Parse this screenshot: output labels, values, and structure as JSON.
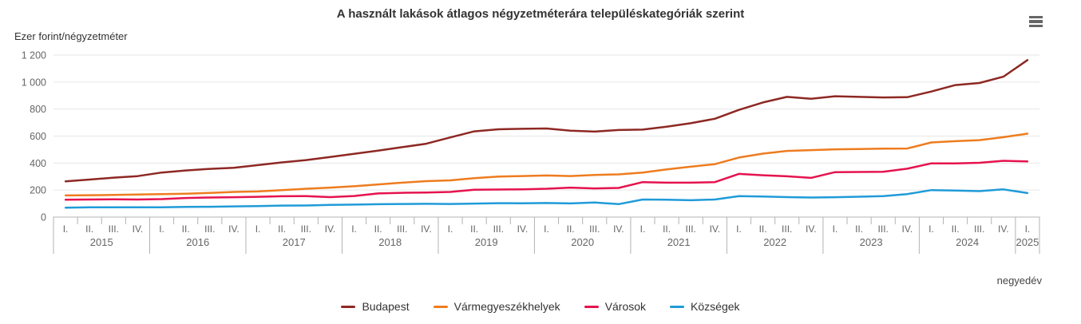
{
  "title": "A használt lakások átlagos négyzetméterára településkategóriák szerint",
  "y_axis_title": "Ezer forint/négyzetméter",
  "x_axis_title": "negyedév",
  "export_menu_icon": "hamburger-menu-icon",
  "colors": {
    "grid": "#e6e6e6",
    "axis": "#b3b3b3",
    "tick_label": "#666666",
    "title_text": "#333333"
  },
  "chart_data": {
    "type": "line",
    "title": "A használt lakások átlagos négyzetméterára településkategóriák szerint",
    "ylabel": "Ezer forint/négyzetméter",
    "xlabel": "negyedév",
    "ylim": [
      0,
      1200
    ],
    "grid": true,
    "legend_position": "bottom",
    "y_ticks": [
      0,
      200,
      400,
      600,
      800,
      1000,
      1200
    ],
    "y_tick_labels": [
      "0",
      "200",
      "400",
      "600",
      "800",
      "1 000",
      "1 200"
    ],
    "x_groups": [
      {
        "year": "2015",
        "quarters": [
          "I.",
          "II.",
          "III.",
          "IV."
        ]
      },
      {
        "year": "2016",
        "quarters": [
          "I.",
          "II.",
          "III.",
          "IV."
        ]
      },
      {
        "year": "2017",
        "quarters": [
          "I.",
          "II.",
          "III.",
          "IV."
        ]
      },
      {
        "year": "2018",
        "quarters": [
          "I.",
          "II.",
          "III.",
          "IV."
        ]
      },
      {
        "year": "2019",
        "quarters": [
          "I.",
          "II.",
          "III.",
          "IV."
        ]
      },
      {
        "year": "2020",
        "quarters": [
          "I.",
          "II.",
          "III.",
          "IV."
        ]
      },
      {
        "year": "2021",
        "quarters": [
          "I.",
          "II.",
          "III.",
          "IV."
        ]
      },
      {
        "year": "2022",
        "quarters": [
          "I.",
          "II.",
          "III.",
          "IV."
        ]
      },
      {
        "year": "2023",
        "quarters": [
          "I.",
          "II.",
          "III.",
          "IV."
        ]
      },
      {
        "year": "2024",
        "quarters": [
          "I.",
          "II.",
          "III.",
          "IV."
        ]
      },
      {
        "year": "2025",
        "quarters": [
          "I."
        ]
      }
    ],
    "series": [
      {
        "name": "Budapest",
        "color": "#8e2823",
        "values": [
          265,
          278,
          292,
          303,
          330,
          345,
          357,
          365,
          385,
          405,
          422,
          445,
          468,
          492,
          518,
          543,
          590,
          635,
          650,
          654,
          656,
          640,
          633,
          645,
          648,
          670,
          695,
          728,
          794,
          849,
          890,
          876,
          895,
          890,
          886,
          888,
          930,
          978,
          993,
          1040,
          1163
        ]
      },
      {
        "name": "Vármegyeszékhelyek",
        "color": "#ee7c1f",
        "values": [
          160,
          162,
          164,
          167,
          170,
          173,
          179,
          186,
          190,
          200,
          210,
          218,
          228,
          242,
          255,
          266,
          272,
          288,
          300,
          304,
          308,
          304,
          312,
          316,
          330,
          353,
          373,
          392,
          441,
          470,
          490,
          496,
          502,
          504,
          507,
          508,
          553,
          562,
          570,
          592,
          618
        ]
      },
      {
        "name": "Városok",
        "color": "#e5134e",
        "values": [
          128,
          130,
          131,
          130,
          133,
          141,
          145,
          147,
          150,
          154,
          155,
          148,
          156,
          175,
          180,
          182,
          186,
          202,
          204,
          206,
          210,
          218,
          212,
          216,
          259,
          255,
          255,
          259,
          320,
          310,
          302,
          290,
          333,
          334,
          335,
          358,
          398,
          398,
          402,
          417,
          412
        ]
      },
      {
        "name": "Községek",
        "color": "#209bd8",
        "values": [
          70,
          72,
          72,
          72,
          73,
          75,
          76,
          79,
          81,
          85,
          86,
          90,
          92,
          95,
          97,
          98,
          97,
          100,
          103,
          102,
          104,
          101,
          108,
          96,
          130,
          128,
          125,
          130,
          155,
          152,
          148,
          145,
          147,
          151,
          155,
          170,
          200,
          196,
          192,
          205,
          178
        ]
      }
    ]
  }
}
